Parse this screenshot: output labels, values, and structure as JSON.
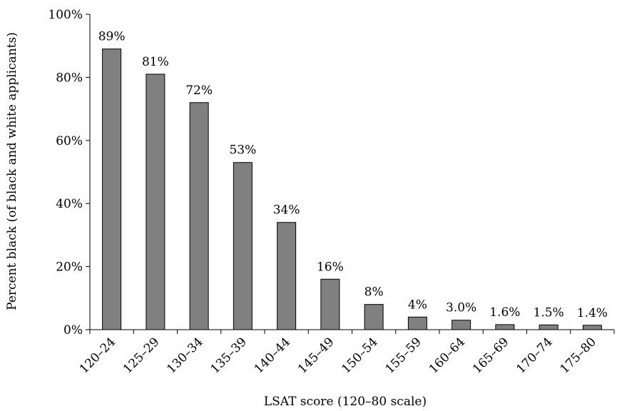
{
  "chart_data": {
    "type": "bar",
    "title": "",
    "xlabel": "LSAT score (120–80 scale)",
    "ylabel": "Percent black (of black and white applicants)",
    "ylim": [
      0,
      100
    ],
    "yticks": [
      "0%",
      "20%",
      "40%",
      "60%",
      "80%",
      "100%"
    ],
    "grid": false,
    "categories": [
      "120–24",
      "125–29",
      "130–34",
      "135–39",
      "140–44",
      "145–49",
      "150–54",
      "155–59",
      "160–64",
      "165–69",
      "170–74",
      "175–80"
    ],
    "values": [
      89,
      81,
      72,
      53,
      34,
      16,
      8,
      4,
      3.0,
      1.6,
      1.5,
      1.4
    ],
    "data_labels": [
      "89%",
      "81%",
      "72%",
      "53%",
      "34%",
      "16%",
      "8%",
      "4%",
      "3.0%",
      "1.6%",
      "1.5%",
      "1.4%"
    ],
    "bar_color": "#808080",
    "bar_stroke": "#000000"
  }
}
